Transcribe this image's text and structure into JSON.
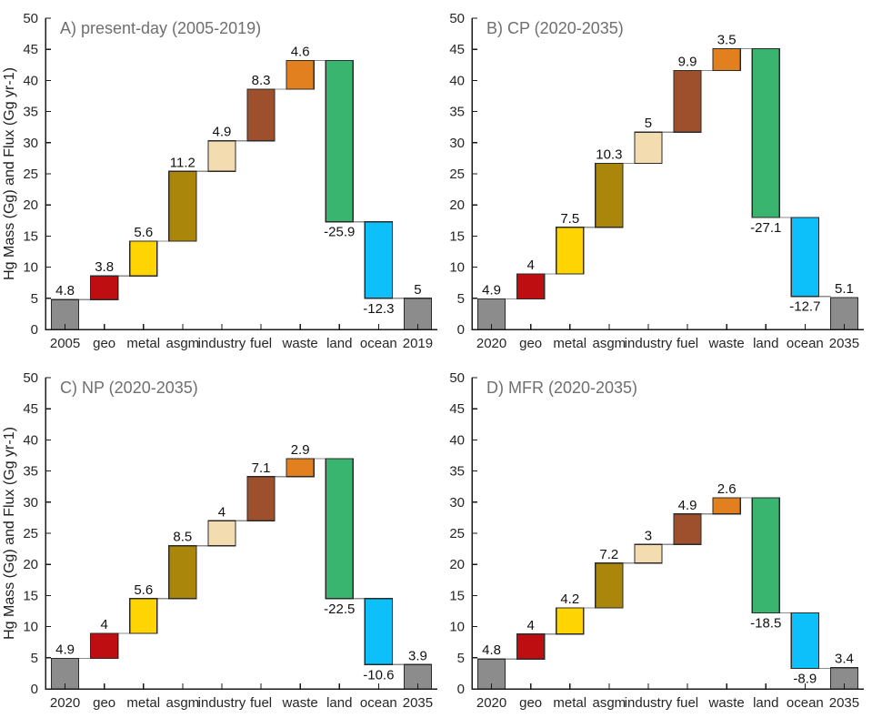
{
  "page": {
    "background": "#ffffff"
  },
  "figure": {
    "ylabel": "Hg Mass (Gg) and Flux (Gg yr-1)",
    "yticks": [
      0,
      5,
      10,
      15,
      20,
      25,
      30,
      35,
      40,
      45,
      50
    ],
    "ylim": [
      0,
      50
    ],
    "grid": "off",
    "legend": "none",
    "bar_border_color": "#2b2b2b",
    "connector_color": "#8c8c8c",
    "title_color": "#6f6f6f",
    "axis_color": "#1a1a1a",
    "tick_label_color": "#262626",
    "value_label_color": "#111111",
    "bar_colors": [
      "#8c8c8c",
      "#be0e11",
      "#fed402",
      "#aa860b",
      "#f3ddb0",
      "#9e4f2b",
      "#e2801f",
      "#3ab56f",
      "#0ec0fa",
      "#8c8c8c"
    ]
  },
  "chart_data": [
    {
      "type": "bar",
      "subtype": "waterfall",
      "panel_id": "A",
      "title": "A) present-day (2005-2019)",
      "categories": [
        "2005",
        "geo",
        "metal",
        "asgm",
        "industry",
        "fuel",
        "waste",
        "land",
        "ocean",
        "2019"
      ],
      "values": [
        4.8,
        3.8,
        5.6,
        11.2,
        4.9,
        8.3,
        4.6,
        -25.9,
        -12.3,
        5
      ],
      "value_labels": [
        "4.8",
        "3.8",
        "5.6",
        "11.2",
        "4.9",
        "8.3",
        "4.6",
        "-25.9",
        "-12.3",
        "5"
      ],
      "bar_kinds": [
        "total",
        "delta",
        "delta",
        "delta",
        "delta",
        "delta",
        "delta",
        "delta",
        "delta",
        "total"
      ],
      "ylim": [
        0,
        50
      ],
      "show_ylabel": true
    },
    {
      "type": "bar",
      "subtype": "waterfall",
      "panel_id": "B",
      "title": "B) CP (2020-2035)",
      "categories": [
        "2020",
        "geo",
        "metal",
        "asgm",
        "industry",
        "fuel",
        "waste",
        "land",
        "ocean",
        "2035"
      ],
      "values": [
        4.9,
        4,
        7.5,
        10.3,
        5,
        9.9,
        3.5,
        -27.1,
        -12.7,
        5.1
      ],
      "value_labels": [
        "4.9",
        "4",
        "7.5",
        "10.3",
        "5",
        "9.9",
        "3.5",
        "-27.1",
        "-12.7",
        "5.1"
      ],
      "bar_kinds": [
        "total",
        "delta",
        "delta",
        "delta",
        "delta",
        "delta",
        "delta",
        "delta",
        "delta",
        "total"
      ],
      "ylim": [
        0,
        50
      ],
      "show_ylabel": false
    },
    {
      "type": "bar",
      "subtype": "waterfall",
      "panel_id": "C",
      "title": "C) NP (2020-2035)",
      "categories": [
        "2020",
        "geo",
        "metal",
        "asgm",
        "industry",
        "fuel",
        "waste",
        "land",
        "ocean",
        "2035"
      ],
      "values": [
        4.9,
        4,
        5.6,
        8.5,
        4,
        7.1,
        2.9,
        -22.5,
        -10.6,
        3.9
      ],
      "value_labels": [
        "4.9",
        "4",
        "5.6",
        "8.5",
        "4",
        "7.1",
        "2.9",
        "-22.5",
        "-10.6",
        "3.9"
      ],
      "bar_kinds": [
        "total",
        "delta",
        "delta",
        "delta",
        "delta",
        "delta",
        "delta",
        "delta",
        "delta",
        "total"
      ],
      "ylim": [
        0,
        50
      ],
      "show_ylabel": true
    },
    {
      "type": "bar",
      "subtype": "waterfall",
      "panel_id": "D",
      "title": "D) MFR (2020-2035)",
      "categories": [
        "2020",
        "geo",
        "metal",
        "asgm",
        "industry",
        "fuel",
        "waste",
        "land",
        "ocean",
        "2035"
      ],
      "values": [
        4.8,
        4,
        4.2,
        7.2,
        3,
        4.9,
        2.6,
        -18.5,
        -8.9,
        3.4
      ],
      "value_labels": [
        "4.8",
        "4",
        "4.2",
        "7.2",
        "3",
        "4.9",
        "2.6",
        "-18.5",
        "-8.9",
        "3.4"
      ],
      "bar_kinds": [
        "total",
        "delta",
        "delta",
        "delta",
        "delta",
        "delta",
        "delta",
        "delta",
        "delta",
        "total"
      ],
      "ylim": [
        0,
        50
      ],
      "show_ylabel": false
    }
  ]
}
